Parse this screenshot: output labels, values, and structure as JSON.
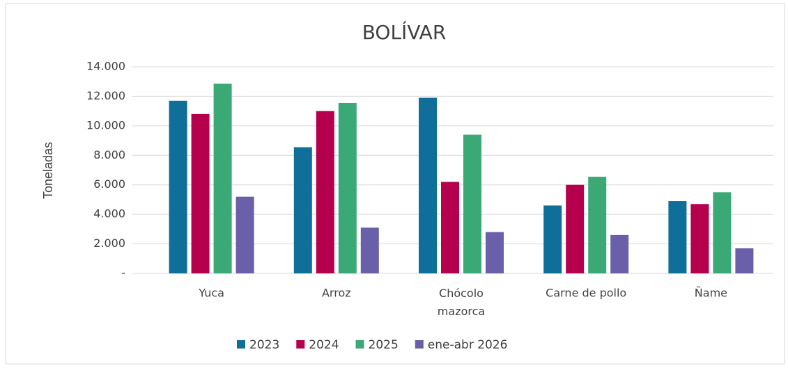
{
  "chart_data": {
    "type": "bar",
    "title": "BOLÍVAR",
    "y_label": "Toneladas",
    "categories": [
      "Yuca",
      "Arroz",
      "Chócolo\nmazorca",
      "Carne de pollo",
      "Ñame"
    ],
    "series": [
      {
        "name": "2023",
        "color": "#0f6f98",
        "values": [
          11700,
          8550,
          11900,
          4600,
          4900
        ]
      },
      {
        "name": "2024",
        "color": "#b5004d",
        "values": [
          10800,
          11000,
          6200,
          6000,
          4700
        ]
      },
      {
        "name": "2025",
        "color": "#3aa976",
        "values": [
          12850,
          11550,
          9400,
          6550,
          5500
        ]
      },
      {
        "name": "ene-abr 2026",
        "color": "#6a5fa9",
        "values": [
          5200,
          3100,
          2800,
          2600,
          1700
        ]
      }
    ],
    "ylim": [
      0,
      14000
    ],
    "yticks": [
      {
        "value": 0,
        "label": "-"
      },
      {
        "value": 2000,
        "label": "2.000"
      },
      {
        "value": 4000,
        "label": "4.000"
      },
      {
        "value": 6000,
        "label": "6.000"
      },
      {
        "value": 8000,
        "label": "8.000"
      },
      {
        "value": 10000,
        "label": "10.000"
      },
      {
        "value": 12000,
        "label": "12.000"
      },
      {
        "value": 14000,
        "label": "14.000"
      }
    ],
    "grid": true,
    "legend": "bottom"
  }
}
